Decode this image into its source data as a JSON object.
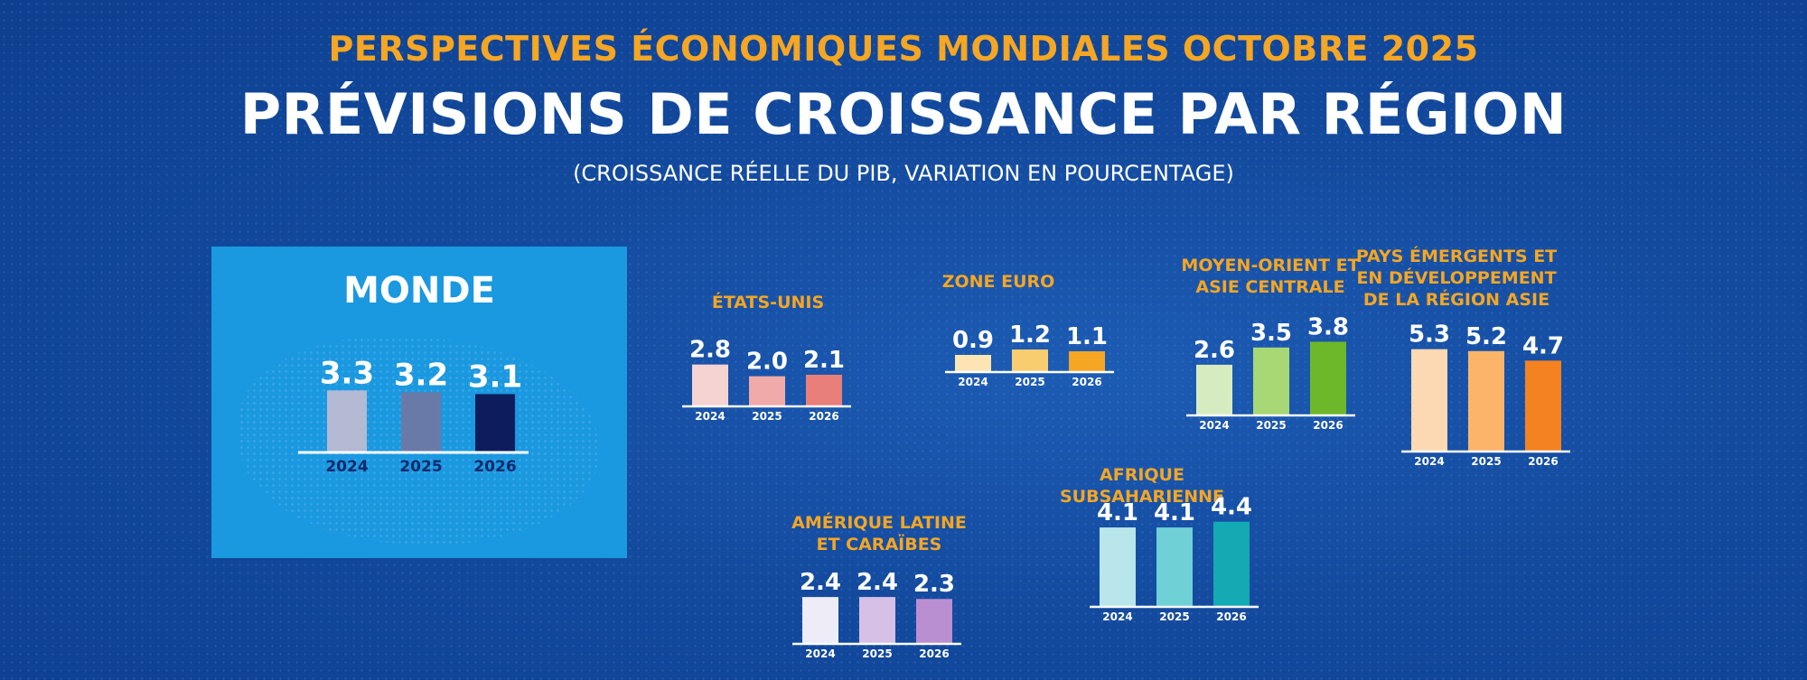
{
  "header": {
    "supertitle": "PERSPECTIVES ÉCONOMIQUES MONDIALES OCTOBRE 2025",
    "title": "PRÉVISIONS DE CROISSANCE PAR RÉGION",
    "subtitle": "(CROISSANCE RÉELLE DU PIB, VARIATION EN POURCENTAGE)"
  },
  "chart_data": [
    {
      "id": "monde",
      "type": "bar",
      "title": "MONDE",
      "categories": [
        "2024",
        "2025",
        "2026"
      ],
      "values": [
        3.3,
        3.2,
        3.1
      ],
      "labels": [
        "3.3",
        "3.2",
        "3.1"
      ],
      "colors": [
        "#b4b9d4",
        "#6a7aa8",
        "#0d1c5c"
      ]
    },
    {
      "id": "etats-unis",
      "type": "bar",
      "title": "ÉTATS-UNIS",
      "categories": [
        "2024",
        "2025",
        "2026"
      ],
      "values": [
        2.8,
        2.0,
        2.1
      ],
      "labels": [
        "2.8",
        "2.0",
        "2.1"
      ],
      "colors": [
        "#f6d3d3",
        "#f0aaa9",
        "#e97f7b"
      ]
    },
    {
      "id": "zone-euro",
      "type": "bar",
      "title": "ZONE EURO",
      "categories": [
        "2024",
        "2025",
        "2026"
      ],
      "values": [
        0.9,
        1.2,
        1.1
      ],
      "labels": [
        "0.9",
        "1.2",
        "1.1"
      ],
      "colors": [
        "#fce5b3",
        "#f8cd70",
        "#f5a623"
      ]
    },
    {
      "id": "moyen-orient",
      "type": "bar",
      "title": "MOYEN-ORIENT ET ASIE CENTRALE",
      "title_lines": [
        "MOYEN-ORIENT ET",
        "ASIE CENTRALE"
      ],
      "categories": [
        "2024",
        "2025",
        "2026"
      ],
      "values": [
        2.6,
        3.5,
        3.8
      ],
      "labels": [
        "2.6",
        "3.5",
        "3.8"
      ],
      "colors": [
        "#d6ecc0",
        "#a7d875",
        "#6cb82a"
      ]
    },
    {
      "id": "asie",
      "type": "bar",
      "title": "PAYS ÉMERGENTS ET EN DÉVELOPPEMENT DE LA RÉGION ASIE",
      "title_lines": [
        "PAYS ÉMERGENTS ET",
        "EN DÉVELOPPEMENT",
        "DE LA RÉGION ASIE"
      ],
      "categories": [
        "2024",
        "2025",
        "2026"
      ],
      "values": [
        5.3,
        5.2,
        4.7
      ],
      "labels": [
        "5.3",
        "5.2",
        "4.7"
      ],
      "colors": [
        "#fdd9b3",
        "#fbb468",
        "#f58220"
      ]
    },
    {
      "id": "afrique",
      "type": "bar",
      "title": "AFRIQUE SUBSAHARIENNE",
      "categories": [
        "2024",
        "2025",
        "2026"
      ],
      "values": [
        4.1,
        4.1,
        4.4
      ],
      "labels": [
        "4.1",
        "4.1",
        "4.4"
      ],
      "colors": [
        "#b8e6ea",
        "#6fd0d6",
        "#14aab4"
      ]
    },
    {
      "id": "amerique-latine",
      "type": "bar",
      "title": "AMÉRIQUE LATINE ET CARAÏBES",
      "title_lines": [
        "AMÉRIQUE LATINE",
        "ET CARAÏBES"
      ],
      "categories": [
        "2024",
        "2025",
        "2026"
      ],
      "values": [
        2.4,
        2.4,
        2.3
      ],
      "labels": [
        "2.4",
        "2.4",
        "2.3"
      ],
      "colors": [
        "#eeedf7",
        "#d7c0e6",
        "#b98fd1"
      ]
    }
  ]
}
